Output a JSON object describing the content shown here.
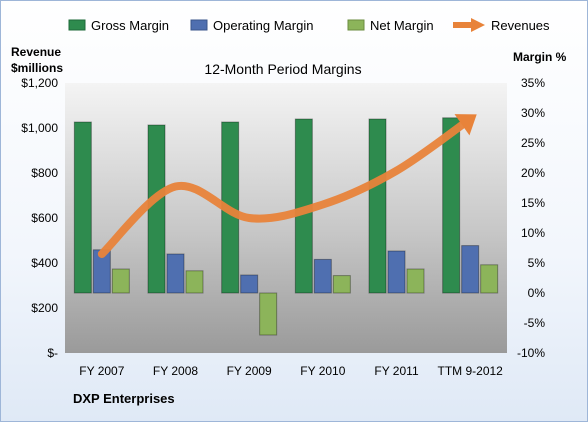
{
  "chart_data": {
    "type": "bar",
    "title": "12-Month Period Margins",
    "subtitle": "",
    "company": "DXP Enterprises",
    "categories": [
      "FY 2007",
      "FY 2008",
      "FY 2009",
      "FY 2010",
      "FY 2011",
      "TTM 9-2012"
    ],
    "left_axis": {
      "label_line1": "Revenue",
      "label_line2": "$millions",
      "ticks": [
        0,
        200,
        400,
        600,
        800,
        1000,
        1200
      ],
      "tick_labels": [
        "$-",
        "$200",
        "$400",
        "$600",
        "$800",
        "$1,000",
        "$1,200"
      ],
      "ylim": [
        0,
        1200
      ]
    },
    "right_axis": {
      "label": "Margin %",
      "ticks": [
        -10,
        -5,
        0,
        5,
        10,
        15,
        20,
        25,
        30,
        35
      ],
      "tick_labels": [
        "-10%",
        "-5%",
        "0%",
        "5%",
        "10%",
        "15%",
        "20%",
        "25%",
        "30%",
        "35%"
      ],
      "ylim": [
        -10,
        35
      ]
    },
    "series": [
      {
        "name": "Gross Margin",
        "type": "bar",
        "axis": "right",
        "color": "#2e8b4e",
        "values": [
          28.5,
          28.0,
          28.5,
          29.0,
          29.0,
          29.2
        ]
      },
      {
        "name": "Operating Margin",
        "type": "bar",
        "axis": "right",
        "color": "#4f6fb0",
        "values": [
          7.2,
          6.5,
          3.0,
          5.6,
          7.0,
          7.9
        ]
      },
      {
        "name": "Net Margin",
        "type": "bar",
        "axis": "right",
        "color": "#8cb45a",
        "values": [
          4.0,
          3.7,
          -7.0,
          2.9,
          4.0,
          4.7
        ]
      },
      {
        "name": "Revenues",
        "type": "line",
        "axis": "left",
        "color": "#e8833a",
        "values": [
          440,
          740,
          600,
          660,
          810,
          1040
        ]
      }
    ],
    "legend_position": "top",
    "grid": false,
    "plot_background": "#a6a6a6"
  }
}
